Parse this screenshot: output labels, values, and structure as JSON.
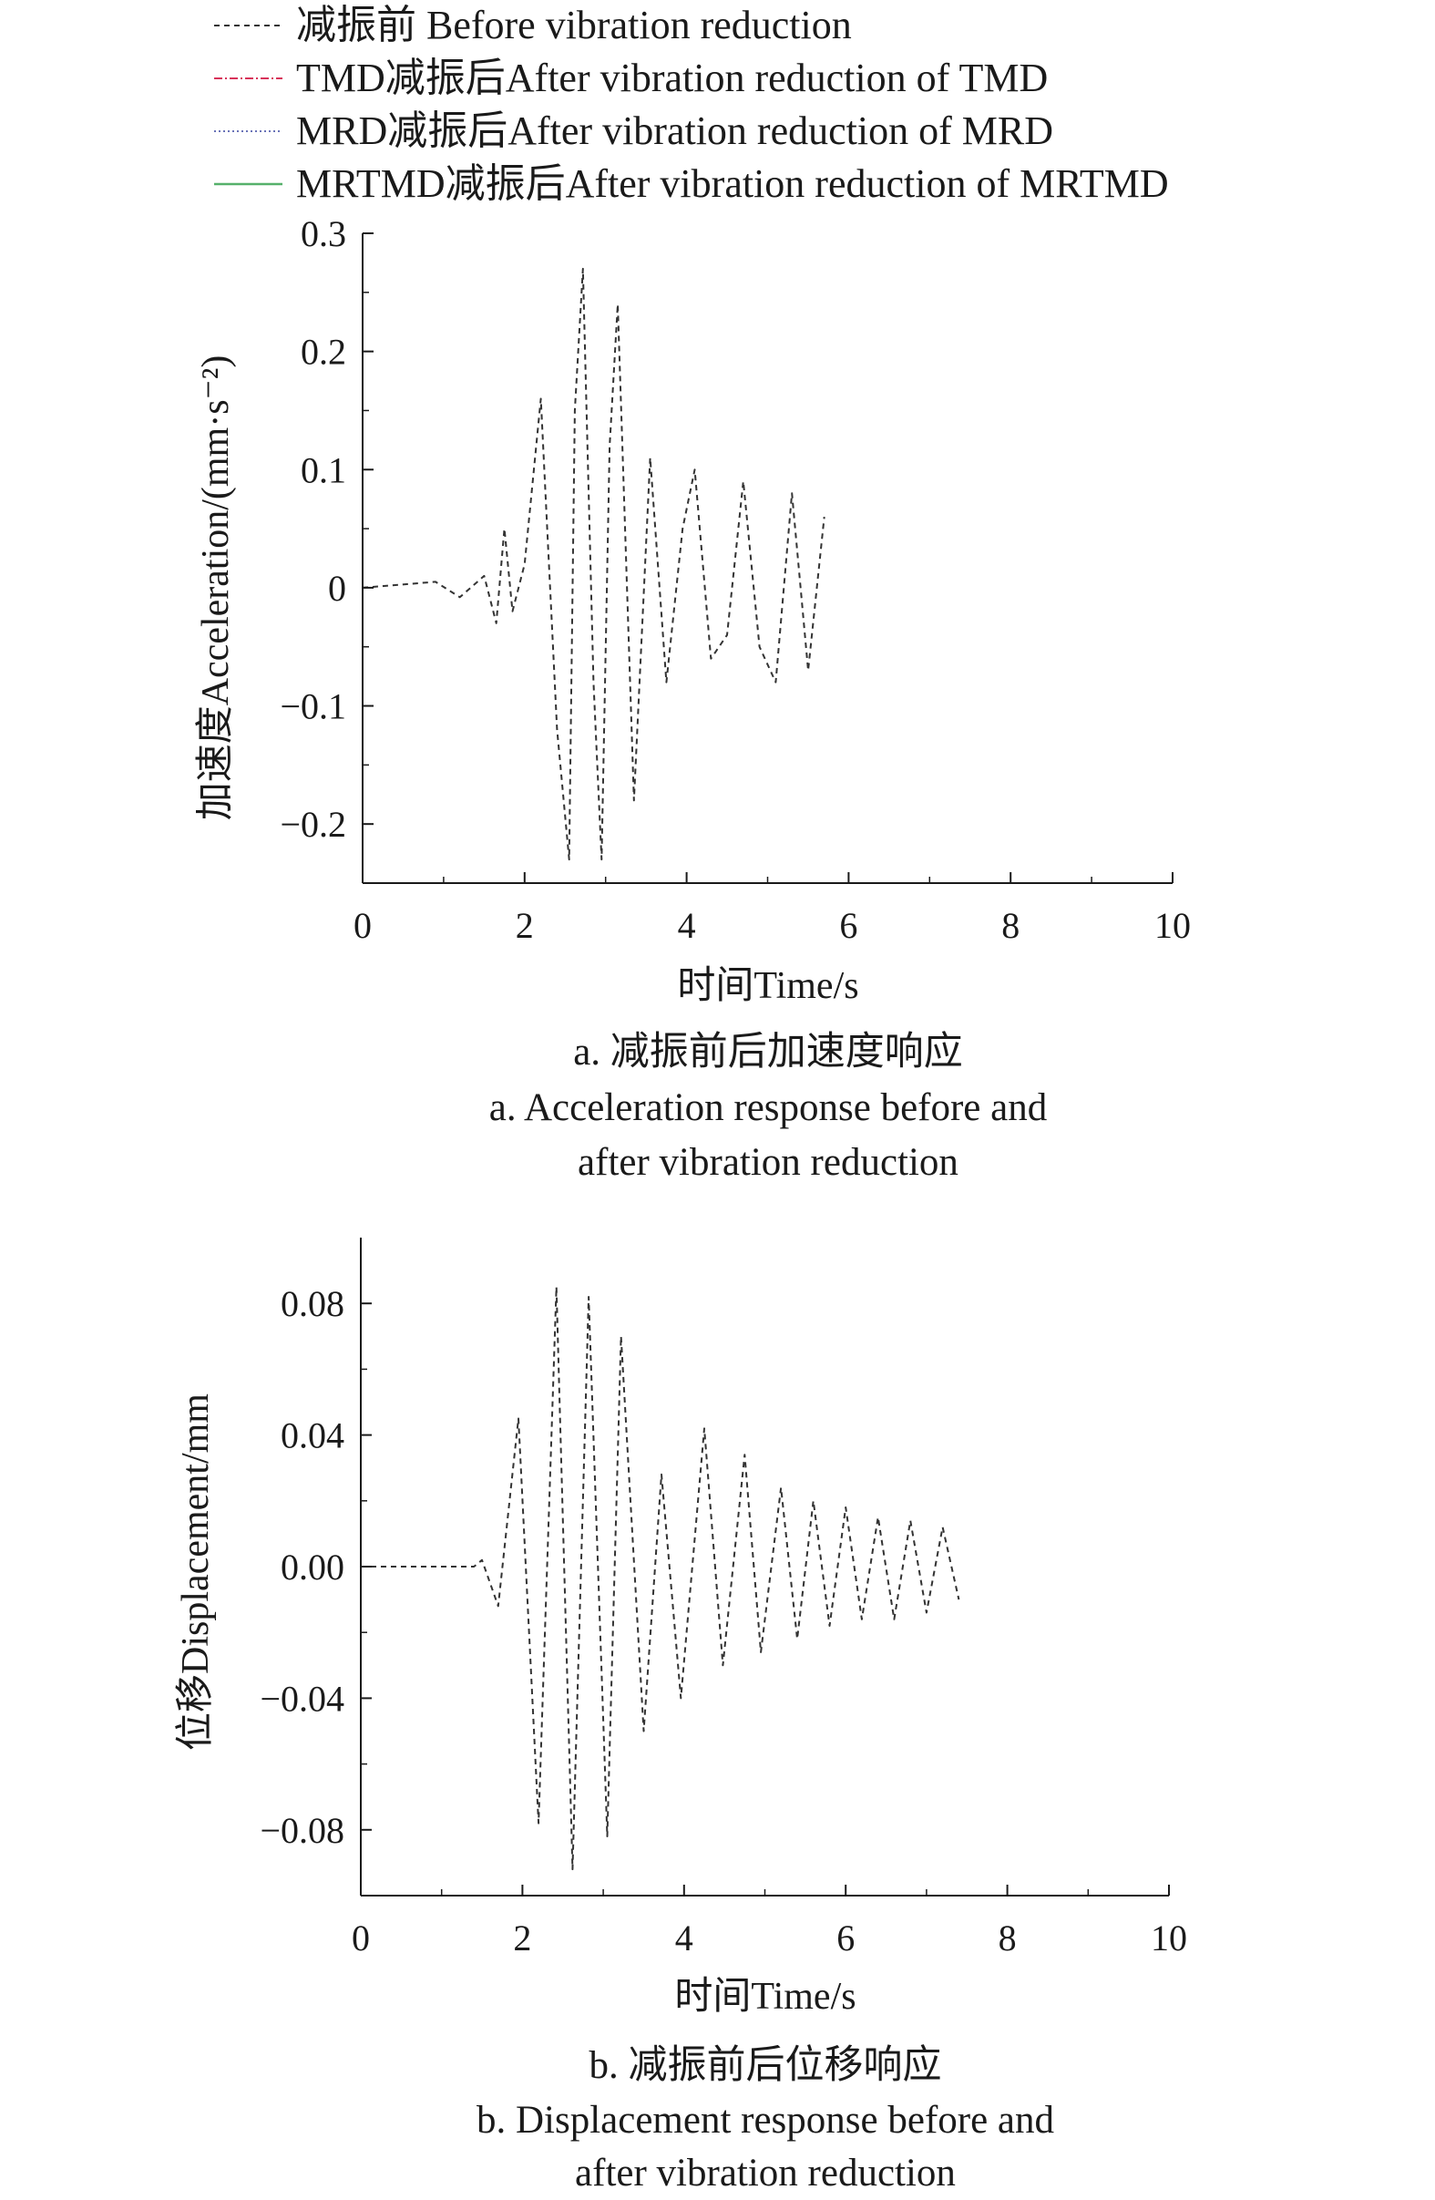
{
  "legend": [
    {
      "label": "减振前 Before vibration reduction",
      "color": "#333333",
      "dash": "6,5",
      "width": 2
    },
    {
      "label": "TMD减振后After vibration reduction of TMD",
      "color": "#d8325a",
      "dash": "9,3,2,3",
      "width": 2
    },
    {
      "label": "MRD减振后After vibration reduction of MRD",
      "color": "#6a73b8",
      "dash": "2,3",
      "width": 2
    },
    {
      "label": "MRTMD减振后After vibration reduction of MRTMD",
      "color": "#56b06b",
      "dash": "",
      "width": 2.4
    }
  ],
  "chart_data": [
    {
      "type": "line",
      "xlabel": "时间Time/s",
      "ylabel": "加速度Acceleration/(mm·s⁻²)",
      "xlim": [
        0,
        10
      ],
      "ylim": [
        -0.25,
        0.3
      ],
      "xticks": [
        "0",
        "2",
        "4",
        "6",
        "8",
        "10"
      ],
      "yticks": [
        {
          "v": 0.3,
          "t": "0.3"
        },
        {
          "v": 0.2,
          "t": "0.2"
        },
        {
          "v": 0.1,
          "t": "0.1"
        },
        {
          "v": 0,
          "t": "0"
        },
        {
          "v": -0.1,
          "t": "−0.1"
        },
        {
          "v": -0.2,
          "t": "−0.2"
        }
      ],
      "caption_cn": "a. 减振前后加速度响应",
      "caption_en_1": "a. Acceleration response before and",
      "caption_en_2": "after vibration reduction",
      "series": [
        {
          "name": "减振前 Before vibration reduction",
          "x": [
            0,
            0.9,
            1.2,
            1.5,
            1.65,
            1.75,
            1.85,
            2.0,
            2.2,
            2.4,
            2.55,
            2.62,
            2.72,
            2.85,
            2.95,
            3.05,
            3.15,
            3.35,
            3.55,
            3.75,
            3.95,
            4.1,
            4.3,
            4.5,
            4.7,
            4.9,
            5.1,
            5.3,
            5.5,
            5.7
          ],
          "y": [
            0,
            0.005,
            -0.008,
            0.01,
            -0.03,
            0.05,
            -0.02,
            0.02,
            0.16,
            -0.12,
            -0.23,
            0.15,
            0.27,
            -0.08,
            -0.23,
            0.12,
            0.24,
            -0.18,
            0.11,
            -0.08,
            0.05,
            0.1,
            -0.06,
            -0.04,
            0.09,
            -0.05,
            -0.08,
            0.08,
            -0.07,
            0.06
          ]
        }
      ]
    },
    {
      "type": "line",
      "xlabel": "时间Time/s",
      "ylabel": "位移Displacement/mm",
      "xlim": [
        0,
        10
      ],
      "ylim": [
        -0.1,
        0.1
      ],
      "xticks": [
        "0",
        "2",
        "4",
        "6",
        "8",
        "10"
      ],
      "yticks": [
        {
          "v": 0.08,
          "t": "0.08"
        },
        {
          "v": 0.04,
          "t": "0.04"
        },
        {
          "v": 0,
          "t": "0.00"
        },
        {
          "v": -0.04,
          "t": "−0.04"
        },
        {
          "v": -0.08,
          "t": "−0.08"
        }
      ],
      "caption_cn": "b. 减振前后位移响应",
      "caption_en_1": "b. Displacement response before and",
      "caption_en_2": "after vibration reduction",
      "series": [
        {
          "name": "减振前 Before vibration reduction",
          "x": [
            0,
            1.4,
            1.5,
            1.7,
            1.95,
            2.2,
            2.42,
            2.62,
            2.82,
            3.05,
            3.22,
            3.5,
            3.72,
            3.96,
            4.25,
            4.48,
            4.75,
            4.95,
            5.2,
            5.4,
            5.6,
            5.8,
            6.0,
            6.2,
            6.4,
            6.6,
            6.8,
            7.0,
            7.2,
            7.4
          ],
          "y": [
            0,
            0.0,
            0.002,
            -0.012,
            0.045,
            -0.078,
            0.085,
            -0.092,
            0.082,
            -0.082,
            0.07,
            -0.05,
            0.028,
            -0.04,
            0.042,
            -0.03,
            0.034,
            -0.026,
            0.024,
            -0.022,
            0.02,
            -0.018,
            0.018,
            -0.016,
            0.015,
            -0.016,
            0.014,
            -0.014,
            0.012,
            -0.01
          ]
        }
      ]
    }
  ]
}
